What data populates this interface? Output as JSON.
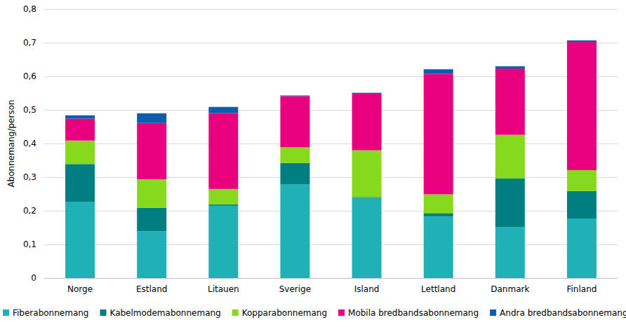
{
  "chart_data": {
    "type": "bar",
    "stacked": true,
    "grid": true,
    "legend": "bottom",
    "y_label": "Abonnemang/person",
    "categories": [
      "Norge",
      "Estland",
      "Litauen",
      "Sverige",
      "Island",
      "Lettland",
      "Danmark",
      "Finland"
    ],
    "ylim": [
      0,
      0.8
    ],
    "yticks": [
      0,
      {
        "value": 0.1,
        "label": "0,1"
      },
      {
        "value": 0.2,
        "label": "0,2"
      },
      {
        "value": 0.3,
        "label": "0,3"
      },
      {
        "value": 0.4,
        "label": "0,4"
      },
      {
        "value": 0.5,
        "label": "0,5"
      },
      {
        "value": 0.6,
        "label": "0,6"
      },
      {
        "value": 0.7,
        "label": "0,7"
      },
      {
        "value": 0.8,
        "label": "0,8"
      }
    ],
    "series": [
      {
        "name": "Fiberabonnemang",
        "color": "#1fb1b5",
        "values": [
          0.227,
          0.139,
          0.215,
          0.279,
          0.239,
          0.183,
          0.152,
          0.177
        ]
      },
      {
        "name": "Kabelmodemabonnemang",
        "color": "#007e80",
        "values": [
          0.112,
          0.07,
          0.004,
          0.063,
          0.002,
          0.01,
          0.144,
          0.082
        ]
      },
      {
        "name": "Kopparabonnemang",
        "color": "#86d91c",
        "values": [
          0.07,
          0.085,
          0.046,
          0.047,
          0.139,
          0.056,
          0.13,
          0.062
        ]
      },
      {
        "name": "Mobila bredbandsabonnemang",
        "color": "#e8007f",
        "values": [
          0.065,
          0.167,
          0.226,
          0.152,
          0.17,
          0.358,
          0.197,
          0.381
        ]
      },
      {
        "name": "Andra bredbandsabonnemang",
        "color": "#0f5cae",
        "values": [
          0.01,
          0.029,
          0.018,
          0.002,
          0.001,
          0.014,
          0.007,
          0.005
        ]
      }
    ]
  }
}
